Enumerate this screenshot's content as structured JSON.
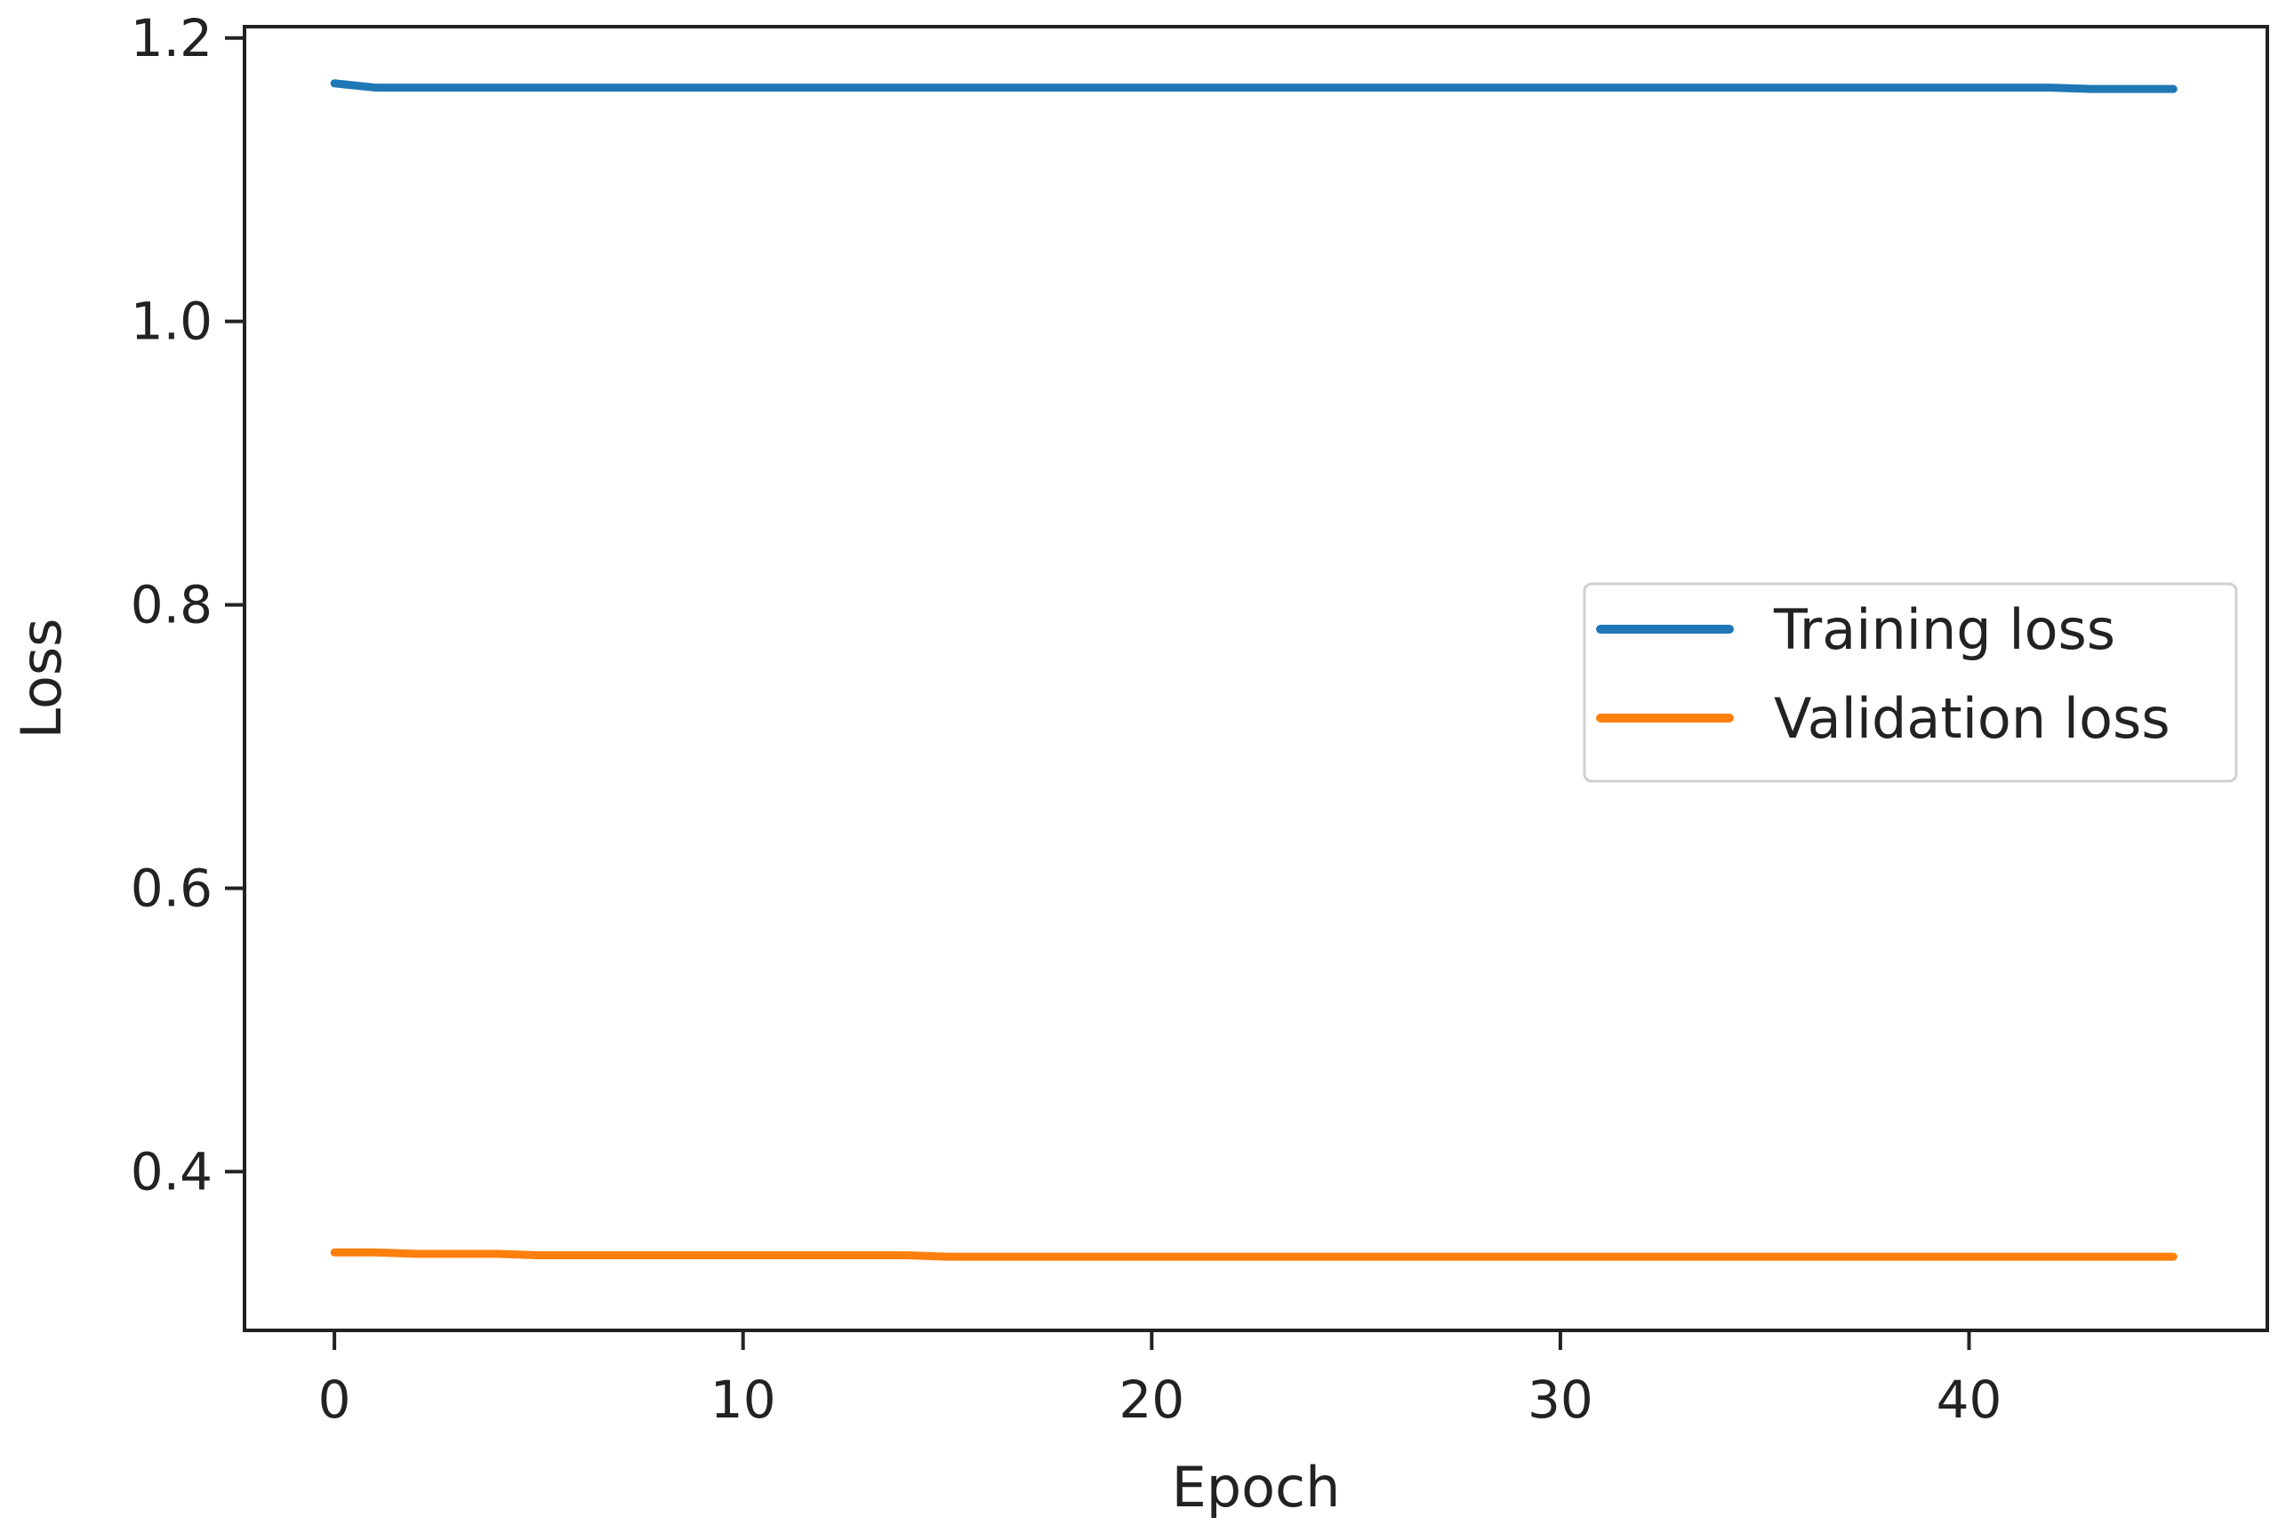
{
  "chart_data": {
    "type": "line",
    "title": "",
    "xlabel": "Epoch",
    "ylabel": "Loss",
    "xlim": [
      -2.2,
      47.3
    ],
    "ylim": [
      0.288,
      1.208
    ],
    "xticks": [
      0,
      10,
      20,
      30,
      40
    ],
    "yticks": [
      0.4,
      0.6,
      0.8,
      1.0,
      1.2
    ],
    "xtick_labels": [
      "0",
      "10",
      "20",
      "30",
      "40"
    ],
    "ytick_labels": [
      "0.4",
      "0.6",
      "0.8",
      "1.0",
      "1.2"
    ],
    "grid": false,
    "legend_position": "center-right",
    "x": [
      0,
      1,
      2,
      3,
      4,
      5,
      6,
      7,
      8,
      9,
      10,
      11,
      12,
      13,
      14,
      15,
      16,
      17,
      18,
      19,
      20,
      21,
      22,
      23,
      24,
      25,
      26,
      27,
      28,
      29,
      30,
      31,
      32,
      33,
      34,
      35,
      36,
      37,
      38,
      39,
      40,
      41,
      42,
      43,
      44,
      45
    ],
    "series": [
      {
        "name": "Training loss",
        "color": "#1f77b4",
        "values": [
          1.168,
          1.165,
          1.165,
          1.165,
          1.165,
          1.165,
          1.165,
          1.165,
          1.165,
          1.165,
          1.165,
          1.165,
          1.165,
          1.165,
          1.165,
          1.165,
          1.165,
          1.165,
          1.165,
          1.165,
          1.165,
          1.165,
          1.165,
          1.165,
          1.165,
          1.165,
          1.165,
          1.165,
          1.165,
          1.165,
          1.165,
          1.165,
          1.165,
          1.165,
          1.165,
          1.165,
          1.165,
          1.165,
          1.165,
          1.165,
          1.165,
          1.165,
          1.165,
          1.164,
          1.164,
          1.164
        ]
      },
      {
        "name": "Validation loss",
        "color": "#ff7f0e",
        "values": [
          0.343,
          0.343,
          0.342,
          0.342,
          0.342,
          0.341,
          0.341,
          0.341,
          0.341,
          0.341,
          0.341,
          0.341,
          0.341,
          0.341,
          0.341,
          0.34,
          0.34,
          0.34,
          0.34,
          0.34,
          0.34,
          0.34,
          0.34,
          0.34,
          0.34,
          0.34,
          0.34,
          0.34,
          0.34,
          0.34,
          0.34,
          0.34,
          0.34,
          0.34,
          0.34,
          0.34,
          0.34,
          0.34,
          0.34,
          0.34,
          0.34,
          0.34,
          0.34,
          0.34,
          0.34,
          0.34
        ]
      }
    ]
  }
}
